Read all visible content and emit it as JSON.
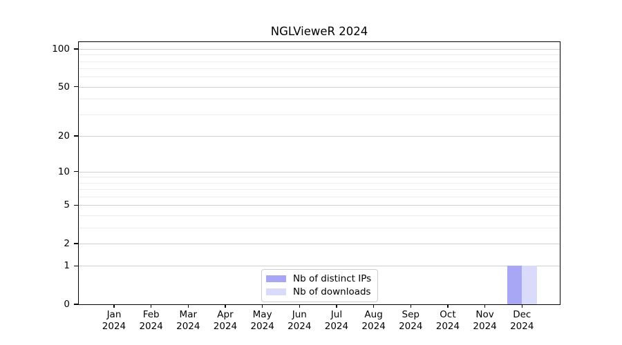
{
  "chart_data": {
    "type": "bar",
    "title": "NGLVieweR 2024",
    "categories": [
      "Jan",
      "Feb",
      "Mar",
      "Apr",
      "May",
      "Jun",
      "Jul",
      "Aug",
      "Sep",
      "Oct",
      "Nov",
      "Dec"
    ],
    "x_tick_year": "2024",
    "series": [
      {
        "name": "Nb of distinct IPs",
        "color": "#a7a7f5",
        "values": [
          0,
          0,
          0,
          0,
          0,
          0,
          0,
          0,
          0,
          0,
          0,
          1
        ]
      },
      {
        "name": "Nb of downloads",
        "color": "#dadafa",
        "values": [
          0,
          0,
          0,
          0,
          0,
          0,
          0,
          0,
          0,
          0,
          0,
          1
        ]
      }
    ],
    "y_axis": {
      "scale": "log1p",
      "ylim": [
        0,
        113.4
      ],
      "ticks": [
        0,
        1,
        2,
        5,
        10,
        20,
        50,
        100
      ],
      "minor_ticks": [
        3,
        4,
        6,
        7,
        8,
        9,
        30,
        40,
        60,
        70,
        80,
        90
      ]
    },
    "grid": "on",
    "legend_position": "lower center"
  },
  "colors": {
    "axis": "#000000",
    "grid_major": "#cfcfcf",
    "grid_minor": "#ededed",
    "background": "#ffffff",
    "legend_border": "#cccccc"
  }
}
